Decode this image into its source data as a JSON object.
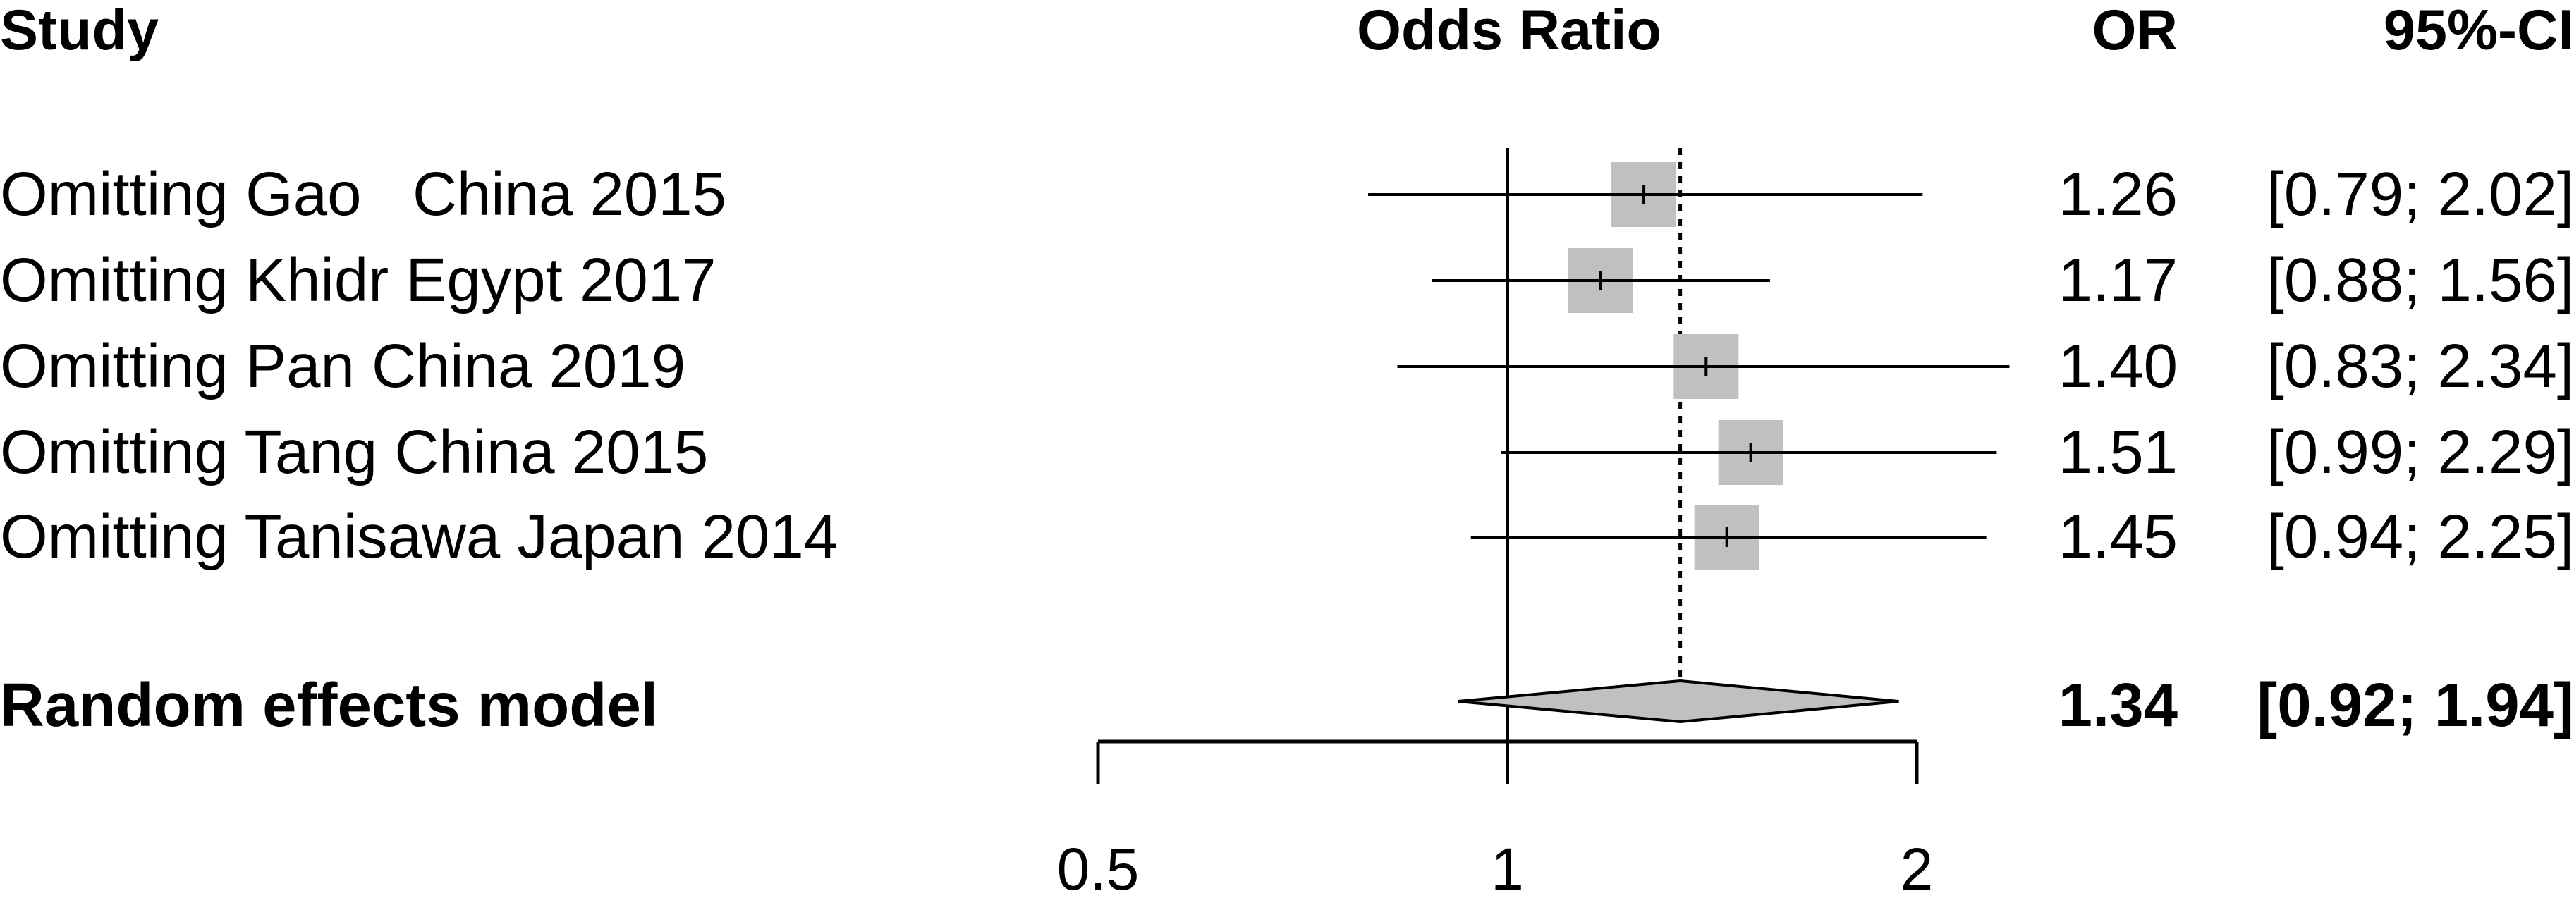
{
  "chart_data": {
    "type": "forest",
    "scale": "log",
    "headers": {
      "study": "Study",
      "effect": "Odds Ratio",
      "or": "OR",
      "ci": "95%-CI"
    },
    "studies": [
      {
        "label": "Omitting Gao   China 2015",
        "or": 1.26,
        "lower": 0.79,
        "upper": 2.02,
        "or_text": "1.26",
        "ci_text": "[0.79; 2.02]"
      },
      {
        "label": "Omitting Khidr Egypt 2017",
        "or": 1.17,
        "lower": 0.88,
        "upper": 1.56,
        "or_text": "1.17",
        "ci_text": "[0.88; 1.56]"
      },
      {
        "label": "Omitting Pan China 2019",
        "or": 1.4,
        "lower": 0.83,
        "upper": 2.34,
        "or_text": "1.40",
        "ci_text": "[0.83; 2.34]"
      },
      {
        "label": "Omitting Tang China 2015",
        "or": 1.51,
        "lower": 0.99,
        "upper": 2.29,
        "or_text": "1.51",
        "ci_text": "[0.99; 2.29]"
      },
      {
        "label": "Omitting Tanisawa Japan 2014",
        "or": 1.45,
        "lower": 0.94,
        "upper": 2.25,
        "or_text": "1.45",
        "ci_text": "[0.94; 2.25]"
      }
    ],
    "summary": {
      "label": "Random effects model",
      "or": 1.34,
      "lower": 0.92,
      "upper": 1.94,
      "or_text": "1.34",
      "ci_text": "[0.92; 1.94]"
    },
    "xaxis": {
      "ticks": [
        0.5,
        1,
        2
      ],
      "tick_labels": [
        "0.5",
        "1",
        "2"
      ],
      "range": [
        0.5,
        2
      ]
    },
    "null_line": 1,
    "colors": {
      "box": "#c0c0c0",
      "diamond": "#c0c0c0",
      "line": "#000000"
    }
  }
}
